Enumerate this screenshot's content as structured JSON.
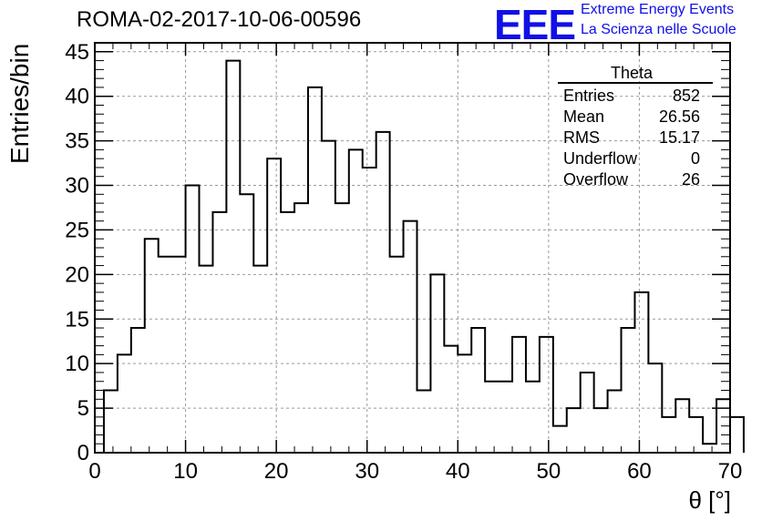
{
  "header": {
    "run_id": "ROMA-02-2017-10-06-00596",
    "logo_text": "EEE",
    "logo_line1": "Extreme Energy Events",
    "logo_line2": "La Scienza nelle Scuole"
  },
  "stats_box": {
    "title": "Theta",
    "rows": [
      {
        "label": "Entries",
        "value": "852"
      },
      {
        "label": "Mean",
        "value": "26.56"
      },
      {
        "label": "RMS",
        "value": "15.17"
      },
      {
        "label": "Underflow",
        "value": "0"
      },
      {
        "label": "Overflow",
        "value": "26"
      }
    ]
  },
  "chart_data": {
    "type": "histogram",
    "title": "ROMA-02-2017-10-06-00596",
    "xlabel": "θ [°]",
    "ylabel": "Entries/bin",
    "xlim": [
      0,
      70
    ],
    "ylim": [
      0,
      46
    ],
    "grid": true,
    "bin_width": 1.5,
    "bin_start": 1.0,
    "values": [
      7,
      11,
      14,
      24,
      22,
      22,
      30,
      21,
      27,
      44,
      29,
      21,
      33,
      27,
      28,
      41,
      35,
      28,
      34,
      32,
      36,
      22,
      26,
      7,
      20,
      12,
      11,
      14,
      8,
      8,
      13,
      8,
      13,
      3,
      5,
      9,
      5,
      7,
      14,
      18,
      10,
      4,
      6,
      4,
      1,
      6,
      4
    ],
    "xticks": [
      0,
      10,
      20,
      30,
      40,
      50,
      60,
      70
    ],
    "yticks": [
      0,
      5,
      10,
      15,
      20,
      25,
      30,
      35,
      40,
      45
    ],
    "colors": {
      "line": "#000000",
      "grid": "#999999",
      "logo": "#1010e8"
    }
  }
}
